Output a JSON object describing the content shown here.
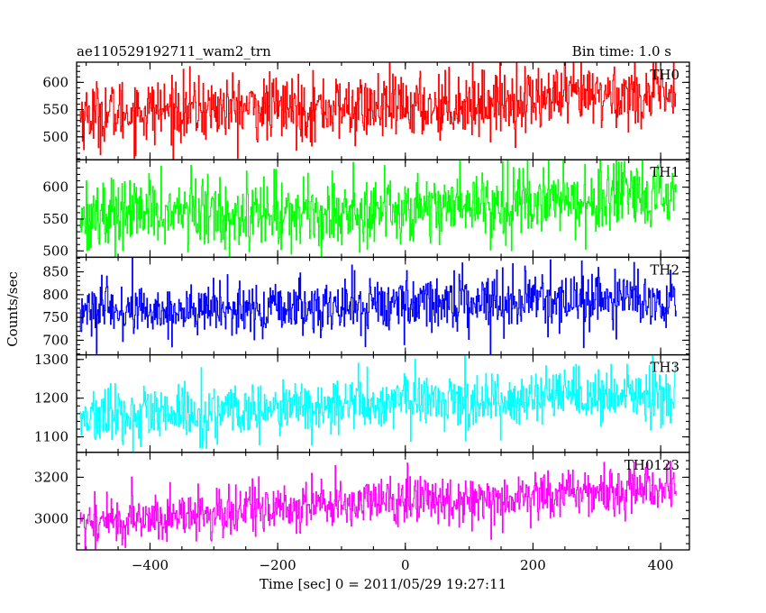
{
  "chart_data": {
    "type": "line",
    "title_left": "ae110529192711_wam2_trn",
    "title_right": "Bin time: 1.0 s",
    "xlabel": "Time [sec] 0 = 2011/05/29 19:27:11",
    "ylabel": "Counts/sec",
    "xlim": [
      -515,
      445
    ],
    "x_start": -510,
    "x_end": 424,
    "x_step": 1,
    "x_ticks": [
      -400,
      -200,
      0,
      200,
      400
    ],
    "x_tick_labels": [
      "−400",
      "−200",
      "0",
      "200",
      "400"
    ],
    "panels": [
      {
        "name": "TH0",
        "color": "#ff0000",
        "ylim": [
          458,
          637
        ],
        "y_ticks": [
          500,
          550,
          600
        ],
        "y_tick_labels": [
          "500",
          "550",
          "600"
        ],
        "mean_start": 540,
        "mean_end": 575,
        "noise_sd": 30
      },
      {
        "name": "TH1",
        "color": "#00ff00",
        "ylim": [
          490,
          643
        ],
        "y_ticks": [
          500,
          550,
          600
        ],
        "y_tick_labels": [
          "500",
          "550",
          "600"
        ],
        "mean_start": 553,
        "mean_end": 582,
        "noise_sd": 28
      },
      {
        "name": "TH2",
        "color": "#0000ff",
        "ylim": [
          668,
          882
        ],
        "y_ticks": [
          700,
          750,
          800,
          850
        ],
        "y_tick_labels": [
          "700",
          "750",
          "800",
          "850"
        ],
        "mean_start": 760,
        "mean_end": 795,
        "noise_sd": 30
      },
      {
        "name": "TH3",
        "color": "#00ffff",
        "ylim": [
          1060,
          1312
        ],
        "y_ticks": [
          1100,
          1200,
          1300
        ],
        "y_tick_labels": [
          "1100",
          "1200",
          "1300"
        ],
        "mean_start": 1150,
        "mean_end": 1215,
        "noise_sd": 36
      },
      {
        "name": "TH0123",
        "color": "#ff00ff",
        "ylim": [
          2850,
          3320
        ],
        "y_ticks": [
          3000,
          3200
        ],
        "y_tick_labels": [
          "3000",
          "3200"
        ],
        "mean_start": 2990,
        "mean_end": 3160,
        "noise_sd": 60
      }
    ]
  }
}
